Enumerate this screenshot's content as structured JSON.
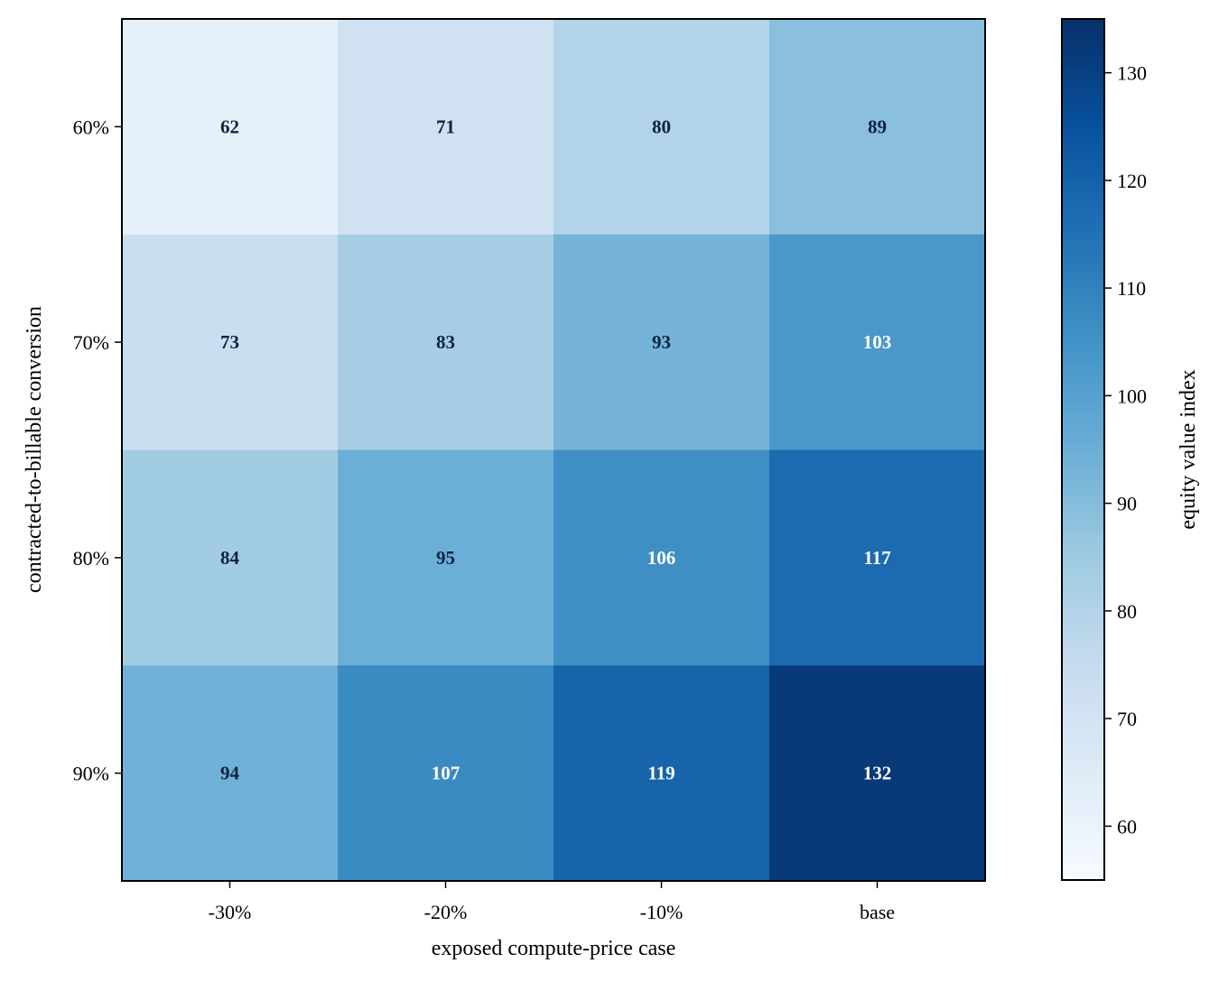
{
  "chart_data": {
    "type": "heatmap",
    "title": "",
    "xlabel": "exposed compute-price case",
    "ylabel": "contracted-to-billable conversion",
    "x_categories": [
      "-30%",
      "-20%",
      "-10%",
      "base"
    ],
    "y_categories": [
      "60%",
      "70%",
      "80%",
      "90%"
    ],
    "values": [
      [
        62,
        71,
        80,
        89
      ],
      [
        73,
        83,
        93,
        103
      ],
      [
        84,
        95,
        106,
        117
      ],
      [
        94,
        107,
        119,
        132
      ]
    ],
    "colorbar": {
      "label": "equity value index",
      "range": [
        55,
        135
      ],
      "ticks": [
        60,
        70,
        80,
        90,
        100,
        110,
        120,
        130
      ],
      "colormap": "Blues"
    },
    "label_colors": {
      "dark_text": "#0d2440",
      "light_text": "#ffffff"
    },
    "light_text_threshold": 100
  }
}
